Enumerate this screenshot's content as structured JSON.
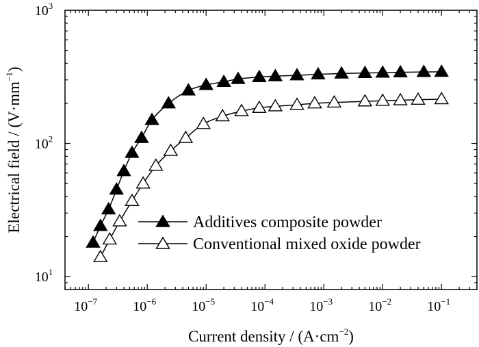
{
  "chart_data": {
    "type": "line",
    "xscale": "log",
    "yscale": "log",
    "xlim": [
      4e-08,
      0.4
    ],
    "ylim": [
      8,
      1000
    ],
    "grid": false,
    "legend_position": "lower-right",
    "xlabel": {
      "main": "Current density / (A·cm",
      "sup": "−2",
      "end": ")"
    },
    "ylabel": {
      "main": "Electrical field / (V·mm",
      "sup": "−1",
      "end": ")"
    },
    "x_ticks": [
      {
        "value": 1e-07,
        "base": "10",
        "exp": "−7"
      },
      {
        "value": 1e-06,
        "base": "10",
        "exp": "−6"
      },
      {
        "value": 1e-05,
        "base": "10",
        "exp": "−5"
      },
      {
        "value": 0.0001,
        "base": "10",
        "exp": "−4"
      },
      {
        "value": 0.001,
        "base": "10",
        "exp": "−3"
      },
      {
        "value": 0.01,
        "base": "10",
        "exp": "−2"
      },
      {
        "value": 0.1,
        "base": "10",
        "exp": "−1"
      }
    ],
    "y_ticks": [
      {
        "value": 10,
        "base": "10",
        "exp": "1"
      },
      {
        "value": 100,
        "base": "10",
        "exp": "2"
      },
      {
        "value": 1000,
        "base": "10",
        "exp": "3"
      }
    ],
    "series": [
      {
        "name": "Additives composite powder",
        "marker": "filled-triangle",
        "x": [
          1.2e-07,
          1.6e-07,
          2.2e-07,
          3e-07,
          4e-07,
          5.5e-07,
          8e-07,
          1.2e-06,
          2.3e-06,
          5e-06,
          1e-05,
          2e-05,
          3.5e-05,
          8e-05,
          0.00015,
          0.00035,
          0.0008,
          0.002,
          0.005,
          0.01,
          0.02,
          0.05,
          0.1
        ],
        "y": [
          18,
          24,
          32,
          45,
          62,
          85,
          110,
          150,
          200,
          250,
          275,
          290,
          305,
          315,
          320,
          325,
          330,
          335,
          338,
          340,
          342,
          344,
          345
        ]
      },
      {
        "name": "Conventional mixed oxide powder",
        "marker": "open-triangle",
        "x": [
          1.6e-07,
          2.3e-07,
          3.4e-07,
          5.5e-07,
          8.5e-07,
          1.4e-06,
          2.5e-06,
          4.5e-06,
          9e-06,
          1.9e-05,
          4e-05,
          8e-05,
          0.00015,
          0.00035,
          0.0007,
          0.0015,
          0.005,
          0.01,
          0.02,
          0.04,
          0.1
        ],
        "y": [
          14,
          19,
          26,
          37,
          50,
          68,
          88,
          110,
          140,
          160,
          175,
          185,
          190,
          195,
          200,
          203,
          207,
          209,
          211,
          213,
          215
        ]
      }
    ]
  }
}
